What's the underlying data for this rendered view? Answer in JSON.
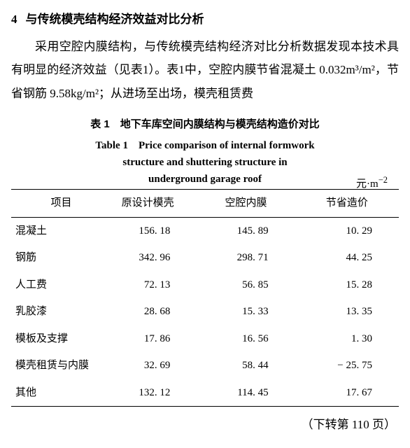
{
  "section": {
    "number": "4",
    "title": "与传统模壳结构经济效益对比分析"
  },
  "paragraph": "采用空腔内膜结构，与传统模壳结构经济对比分析数据发现本技术具有明显的经济效益（见表1）。表1中，空腔内膜节省混凝土 0.032m³/m²，节省钢筋 9.58kg/m²；从进场至出场，模壳租赁费",
  "table": {
    "title_cn": "表 1　地下车库空间内膜结构与模壳结构造价对比",
    "title_en_line1": "Table 1　Price comparison of internal formwork",
    "title_en_line2": "structure and shuttering structure in",
    "title_en_line3": "underground garage roof",
    "unit_cn": "元·m",
    "unit_exp": "−2",
    "columns": [
      "项目",
      "原设计模壳",
      "空腔内膜",
      "节省造价"
    ],
    "rows": [
      [
        "混凝土",
        "156. 18",
        "145. 89",
        "10. 29"
      ],
      [
        "钢筋",
        "342. 96",
        "298. 71",
        "44. 25"
      ],
      [
        "人工费",
        "72. 13",
        "56. 85",
        "15. 28"
      ],
      [
        "乳胶漆",
        "28. 68",
        "15. 33",
        "13. 35"
      ],
      [
        "模板及支撑",
        "17. 86",
        "16. 56",
        "1. 30"
      ],
      [
        "模壳租赁与内膜",
        "32. 69",
        "58. 44",
        "− 25. 75"
      ],
      [
        "其他",
        "132. 12",
        "114. 45",
        "17. 67"
      ]
    ]
  },
  "page_ref": "（下转第 110 页）"
}
